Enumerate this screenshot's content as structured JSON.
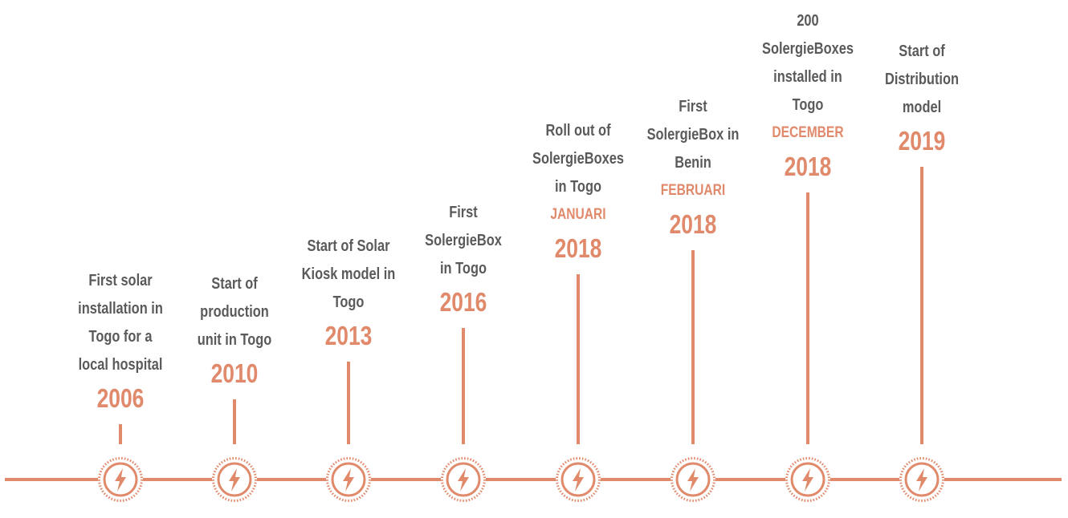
{
  "colors": {
    "accent": "#e0896b",
    "text": "#5a5a5a",
    "background": "#ffffff"
  },
  "icon": "lightning-bolt-icon",
  "milestones": [
    {
      "desc": [
        "First solar",
        "installation in",
        "Togo for a",
        "local hospital"
      ],
      "month": "",
      "year": "2006"
    },
    {
      "desc": [
        "Start of",
        "production",
        "unit in Togo"
      ],
      "month": "",
      "year": "2010"
    },
    {
      "desc": [
        "Start of Solar",
        "Kiosk model in",
        "Togo"
      ],
      "month": "",
      "year": "2013"
    },
    {
      "desc": [
        "First",
        "SolergieBox",
        "in Togo"
      ],
      "month": "",
      "year": "2016"
    },
    {
      "desc": [
        "Roll out of",
        "SolergieBoxes",
        "in Togo"
      ],
      "month": "JANUARI",
      "year": "2018"
    },
    {
      "desc": [
        "First",
        "SolergieBox in",
        "Benin"
      ],
      "month": "FEBRUARI",
      "year": "2018"
    },
    {
      "desc": [
        "200",
        "SolergieBoxes",
        "installed in",
        "Togo"
      ],
      "month": "DECEMBER",
      "year": "2018"
    },
    {
      "desc": [
        "Start of",
        "Distribution",
        "model"
      ],
      "month": "",
      "year": "2019"
    }
  ]
}
